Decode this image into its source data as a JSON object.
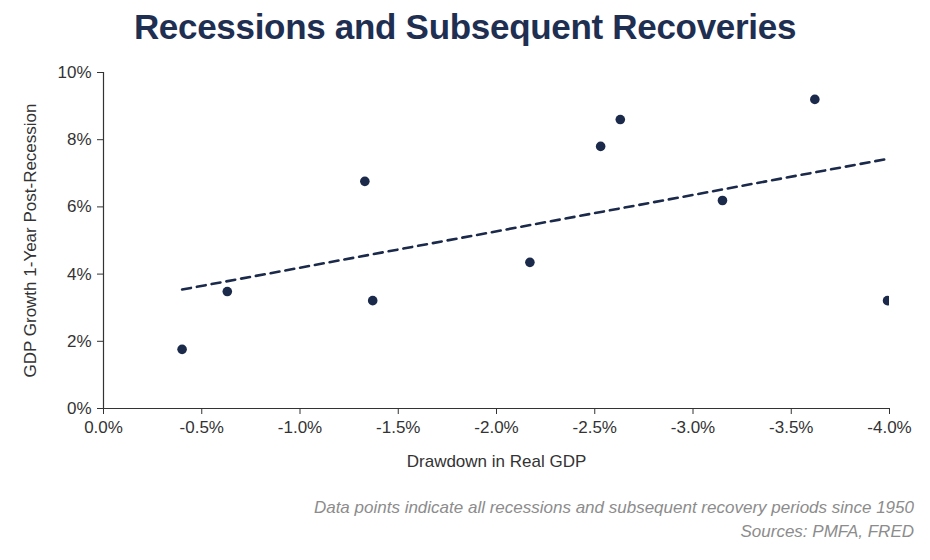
{
  "chart_data": {
    "type": "scatter",
    "title": "Recessions and Subsequent Recoveries",
    "x_label": "Drawdown in Real GDP",
    "y_label": "GDP Growth 1-Year Post-Recession",
    "caption": [
      "Data points indicate all recessions and subsequent recovery periods since 1950",
      "Sources: PMFA, FRED"
    ],
    "xlim": [
      0,
      -4
    ],
    "xticks": [
      {
        "value": 0,
        "label": "0.0%"
      },
      {
        "value": -0.5,
        "label": "-0.5%"
      },
      {
        "value": -1,
        "label": "-1.0%"
      },
      {
        "value": -1.5,
        "label": "-1.5%"
      },
      {
        "value": -2,
        "label": "-2.0%"
      },
      {
        "value": -2.5,
        "label": "-2.5%"
      },
      {
        "value": -3,
        "label": "-3.0%"
      },
      {
        "value": -3.5,
        "label": "-3.5%"
      },
      {
        "value": -4,
        "label": "-4.0%"
      }
    ],
    "ylim": [
      0,
      10
    ],
    "yticks": [
      {
        "value": 0,
        "label": "0%"
      },
      {
        "value": 2,
        "label": "2%"
      },
      {
        "value": 4,
        "label": "4%"
      },
      {
        "value": 6,
        "label": "6%"
      },
      {
        "value": 8,
        "label": "8%"
      },
      {
        "value": 10,
        "label": "10%"
      }
    ],
    "grid": false,
    "series": [
      {
        "type": "scatter",
        "color": "#1b2a4a",
        "marker": "circle",
        "x": [
          -0.4,
          -0.63,
          -1.33,
          -1.37,
          -2.17,
          -2.53,
          -2.63,
          -3.15,
          -3.62,
          -3.99
        ],
        "values": [
          1.76,
          3.48,
          6.76,
          3.21,
          4.35,
          7.8,
          8.6,
          6.19,
          9.2,
          3.21
        ]
      },
      {
        "type": "line",
        "color": "#1b2a4a",
        "line_style": "dashed",
        "x": [
          -0.4,
          -4.0
        ],
        "values": [
          3.54,
          7.44
        ]
      }
    ]
  }
}
